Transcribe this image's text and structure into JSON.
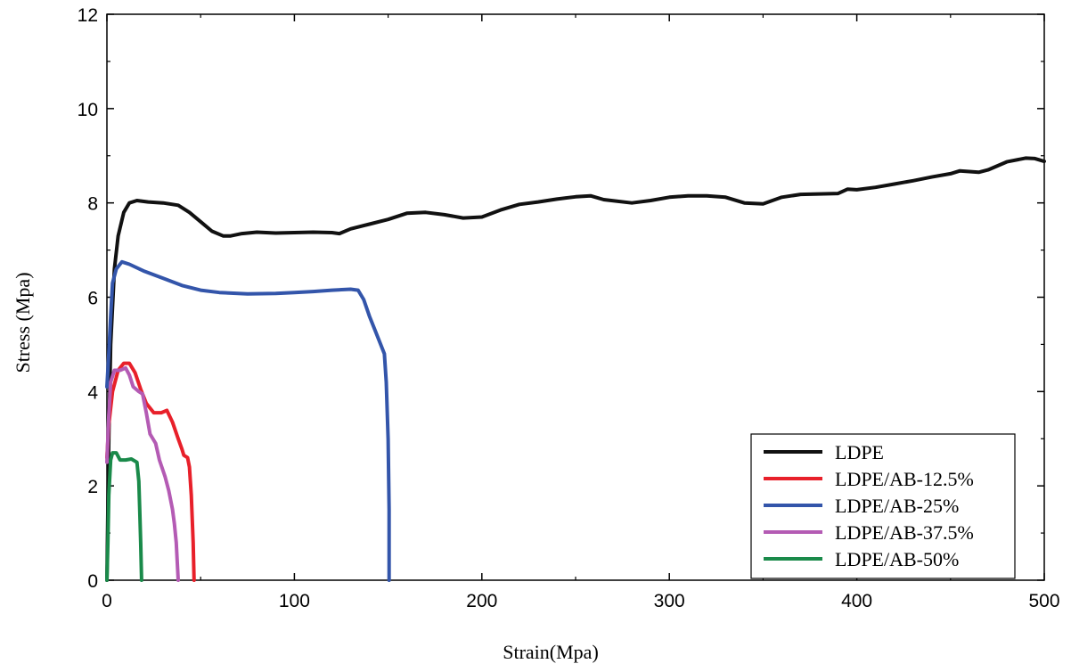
{
  "chart_data": {
    "type": "line",
    "title": "",
    "xlabel": "Strain(Mpa)",
    "ylabel": "Stress (Mpa)",
    "xlim": [
      0,
      500
    ],
    "ylim": [
      0,
      12
    ],
    "x_ticks": [
      0,
      100,
      200,
      300,
      400,
      500
    ],
    "y_ticks": [
      0,
      2,
      4,
      6,
      8,
      10,
      12
    ],
    "x_tick_labels": [
      "0",
      "100",
      "200",
      "300",
      "400",
      "500"
    ],
    "y_tick_labels": [
      "0",
      "2",
      "4",
      "6",
      "8",
      "10",
      "12"
    ],
    "grid": false,
    "legend_position": "bottom-right",
    "series": [
      {
        "name": "LDPE",
        "color": "#111111",
        "points": [
          [
            0,
            0
          ],
          [
            1,
            3
          ],
          [
            2,
            5
          ],
          [
            4,
            6.6
          ],
          [
            6,
            7.3
          ],
          [
            9,
            7.8
          ],
          [
            12,
            8.0
          ],
          [
            16,
            8.05
          ],
          [
            22,
            8.02
          ],
          [
            30,
            8.0
          ],
          [
            38,
            7.95
          ],
          [
            44,
            7.8
          ],
          [
            50,
            7.6
          ],
          [
            56,
            7.4
          ],
          [
            62,
            7.3
          ],
          [
            66,
            7.3
          ],
          [
            72,
            7.35
          ],
          [
            80,
            7.38
          ],
          [
            90,
            7.36
          ],
          [
            100,
            7.37
          ],
          [
            110,
            7.38
          ],
          [
            120,
            7.37
          ],
          [
            124,
            7.35
          ],
          [
            130,
            7.45
          ],
          [
            140,
            7.55
          ],
          [
            150,
            7.65
          ],
          [
            160,
            7.78
          ],
          [
            170,
            7.8
          ],
          [
            180,
            7.75
          ],
          [
            190,
            7.68
          ],
          [
            200,
            7.7
          ],
          [
            210,
            7.85
          ],
          [
            220,
            7.97
          ],
          [
            230,
            8.02
          ],
          [
            240,
            8.08
          ],
          [
            250,
            8.13
          ],
          [
            258,
            8.15
          ],
          [
            265,
            8.07
          ],
          [
            280,
            8.0
          ],
          [
            290,
            8.05
          ],
          [
            300,
            8.12
          ],
          [
            310,
            8.15
          ],
          [
            320,
            8.15
          ],
          [
            330,
            8.12
          ],
          [
            340,
            8.0
          ],
          [
            350,
            7.98
          ],
          [
            360,
            8.12
          ],
          [
            370,
            8.18
          ],
          [
            380,
            8.19
          ],
          [
            390,
            8.2
          ],
          [
            395,
            8.29
          ],
          [
            400,
            8.28
          ],
          [
            410,
            8.33
          ],
          [
            420,
            8.4
          ],
          [
            430,
            8.47
          ],
          [
            440,
            8.55
          ],
          [
            450,
            8.62
          ],
          [
            455,
            8.68
          ],
          [
            465,
            8.65
          ],
          [
            470,
            8.7
          ],
          [
            480,
            8.87
          ],
          [
            490,
            8.95
          ],
          [
            495,
            8.94
          ],
          [
            500,
            8.88
          ]
        ]
      },
      {
        "name": "LDPE/AB-12.5%",
        "color": "#e8202a",
        "points": [
          [
            0,
            2.6
          ],
          [
            1,
            3.3
          ],
          [
            3,
            4.0
          ],
          [
            6,
            4.45
          ],
          [
            9,
            4.6
          ],
          [
            12,
            4.6
          ],
          [
            15,
            4.4
          ],
          [
            18,
            4.05
          ],
          [
            21,
            3.75
          ],
          [
            25,
            3.55
          ],
          [
            29,
            3.55
          ],
          [
            32,
            3.6
          ],
          [
            35,
            3.35
          ],
          [
            38,
            3.0
          ],
          [
            40,
            2.78
          ],
          [
            41,
            2.65
          ],
          [
            43,
            2.6
          ],
          [
            44,
            2.4
          ],
          [
            45,
            1.8
          ],
          [
            46,
            0.8
          ],
          [
            46.5,
            0
          ]
        ]
      },
      {
        "name": "LDPE/AB-25%",
        "color": "#3355aa",
        "points": [
          [
            0,
            4.1
          ],
          [
            1,
            4.8
          ],
          [
            2,
            5.6
          ],
          [
            3,
            6.3
          ],
          [
            5,
            6.6
          ],
          [
            8,
            6.75
          ],
          [
            12,
            6.7
          ],
          [
            20,
            6.55
          ],
          [
            30,
            6.4
          ],
          [
            40,
            6.25
          ],
          [
            50,
            6.15
          ],
          [
            60,
            6.1
          ],
          [
            75,
            6.07
          ],
          [
            90,
            6.08
          ],
          [
            100,
            6.1
          ],
          [
            110,
            6.12
          ],
          [
            120,
            6.15
          ],
          [
            130,
            6.17
          ],
          [
            134,
            6.15
          ],
          [
            137,
            5.95
          ],
          [
            140,
            5.6
          ],
          [
            143,
            5.3
          ],
          [
            146,
            5.0
          ],
          [
            148,
            4.8
          ],
          [
            149,
            4.2
          ],
          [
            150,
            3.0
          ],
          [
            150.5,
            1.5
          ],
          [
            150.5,
            0
          ]
        ]
      },
      {
        "name": "LDPE/AB-37.5%",
        "color": "#b45bb4",
        "points": [
          [
            0,
            2.5
          ],
          [
            1,
            3.5
          ],
          [
            2,
            4.2
          ],
          [
            4,
            4.45
          ],
          [
            7,
            4.45
          ],
          [
            10,
            4.5
          ],
          [
            12,
            4.35
          ],
          [
            14,
            4.1
          ],
          [
            17,
            4.0
          ],
          [
            19,
            3.95
          ],
          [
            21,
            3.55
          ],
          [
            23,
            3.1
          ],
          [
            26,
            2.9
          ],
          [
            28,
            2.55
          ],
          [
            31,
            2.2
          ],
          [
            33,
            1.9
          ],
          [
            35,
            1.5
          ],
          [
            36,
            1.2
          ],
          [
            37,
            0.8
          ],
          [
            38,
            0
          ]
        ]
      },
      {
        "name": "LDPE/AB-50%",
        "color": "#1a8a4a",
        "points": [
          [
            0,
            0
          ],
          [
            0.5,
            0.8
          ],
          [
            1,
            1.8
          ],
          [
            2,
            2.55
          ],
          [
            3,
            2.7
          ],
          [
            5,
            2.7
          ],
          [
            7,
            2.55
          ],
          [
            10,
            2.55
          ],
          [
            13,
            2.57
          ],
          [
            16,
            2.5
          ],
          [
            17,
            2.1
          ],
          [
            17.5,
            1.5
          ],
          [
            18,
            0.8
          ],
          [
            18.5,
            0
          ]
        ]
      }
    ]
  }
}
